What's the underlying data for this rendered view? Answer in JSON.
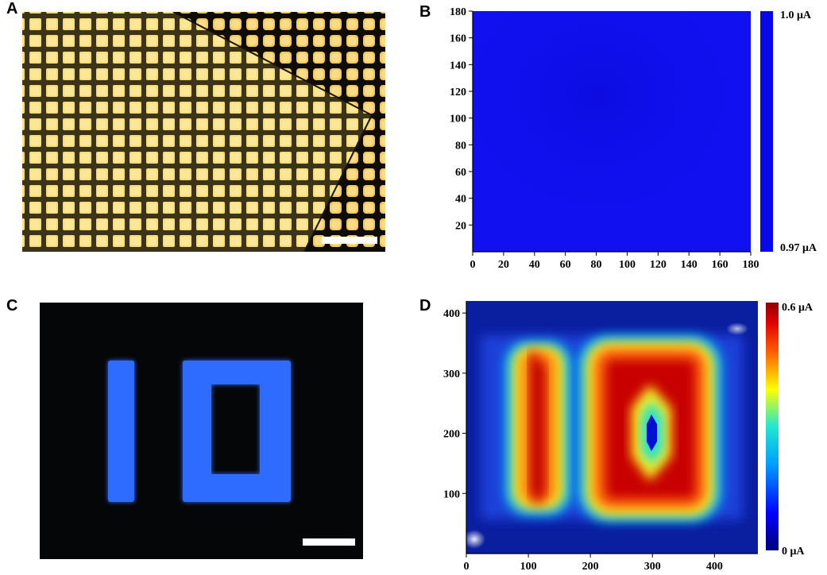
{
  "figure": {
    "panels": [
      {
        "id": "A",
        "label": "A",
        "kind": "micrograph",
        "scale_bar": true
      },
      {
        "id": "B",
        "label": "B",
        "kind": "current-map"
      },
      {
        "id": "C",
        "label": "C",
        "kind": "fluorescence-image",
        "scale_bar": true
      },
      {
        "id": "D",
        "label": "D",
        "kind": "current-map"
      }
    ]
  },
  "colors": {
    "pad_yellow": "#f4d36a",
    "substrate_dark": "#2a2410",
    "uniform_blue": "#1010f0",
    "led_blue": "#2a6bff",
    "background_black": "#050608"
  },
  "chart_data": [
    {
      "panel": "B",
      "type": "heatmap",
      "title": "",
      "xlabel": "",
      "ylabel": "",
      "xlim": [
        0,
        180
      ],
      "ylim": [
        0,
        180
      ],
      "x_ticks": [
        "0",
        "20",
        "40",
        "60",
        "80",
        "100",
        "120",
        "140",
        "160",
        "180"
      ],
      "y_ticks": [
        "20",
        "40",
        "60",
        "80",
        "100",
        "120",
        "140",
        "160",
        "180"
      ],
      "colorbar": {
        "max_label": "1.0 μA",
        "min_label": "0.97 μA",
        "min": 0.97,
        "max": 1.0
      },
      "values": "uniform ≈1.0 μA across 180×180 field"
    },
    {
      "panel": "D",
      "type": "heatmap",
      "title": "",
      "xlabel": "",
      "ylabel": "",
      "xlim": [
        0,
        470
      ],
      "ylim": [
        0,
        420
      ],
      "x_ticks": [
        "0",
        "100",
        "200",
        "300",
        "400"
      ],
      "y_ticks": [
        "100",
        "200",
        "300",
        "400"
      ],
      "colorbar": {
        "max_label": "0.6 μA",
        "min_label": "0 μA",
        "min": 0,
        "max": 0.6
      },
      "regions": [
        {
          "shape": "bar",
          "x": [
            60,
            170
          ],
          "y": [
            80,
            340
          ],
          "value": 0.6
        },
        {
          "shape": "ring",
          "outer_x": [
            180,
            400
          ],
          "outer_y": [
            70,
            340
          ],
          "inner_x": [
            280,
            330
          ],
          "inner_y": [
            150,
            260
          ],
          "value": 0.6
        }
      ]
    }
  ]
}
